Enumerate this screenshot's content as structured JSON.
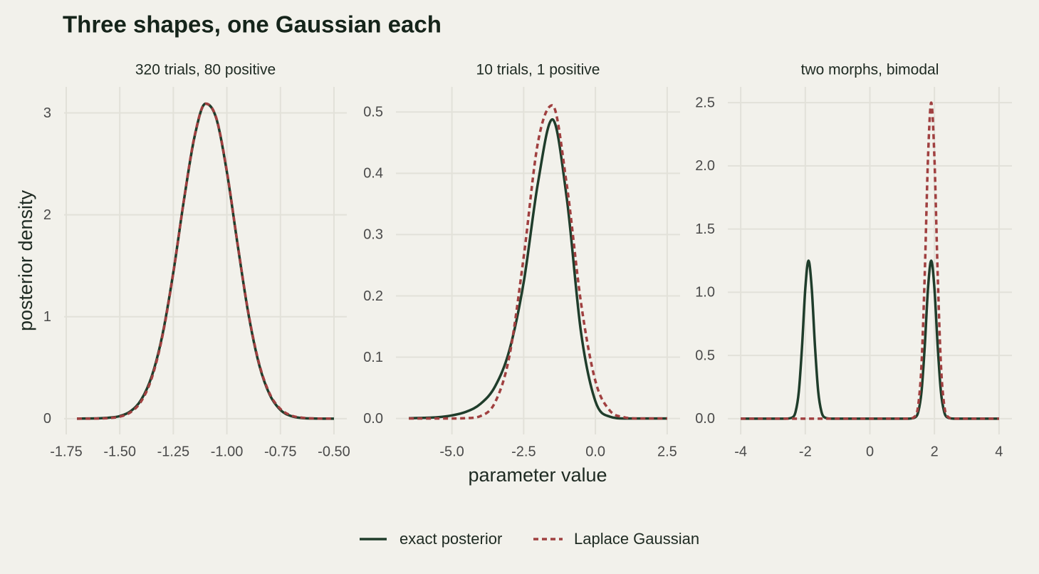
{
  "title": "Three shapes, one Gaussian each",
  "x_label": "parameter value",
  "y_label": "posterior density",
  "chart_data": [
    {
      "type": "line",
      "title": "320 trials, 80 positive",
      "x": [
        -1.7,
        -1.65,
        -1.6,
        -1.55,
        -1.5,
        -1.45,
        -1.4,
        -1.35,
        -1.3,
        -1.25,
        -1.2,
        -1.15,
        -1.1,
        -1.05,
        -1.0,
        -0.95,
        -0.9,
        -0.85,
        -0.8,
        -0.75,
        -0.7,
        -0.65,
        -0.6,
        -0.55,
        -0.5
      ],
      "series": [
        {
          "name": "exact posterior",
          "color": "#1f3d2b",
          "dash": false,
          "values": [
            0,
            0.001,
            0.003,
            0.009,
            0.025,
            0.072,
            0.185,
            0.42,
            0.83,
            1.435,
            2.15,
            2.775,
            3.09,
            2.95,
            2.42,
            1.71,
            1.035,
            0.535,
            0.235,
            0.085,
            0.025,
            0.006,
            0.001,
            0,
            0
          ]
        },
        {
          "name": "Laplace Gaussian",
          "color": "#a04040",
          "dash": true,
          "values": [
            0,
            0,
            0.001,
            0.005,
            0.019,
            0.062,
            0.17,
            0.403,
            0.819,
            1.431,
            2.152,
            2.781,
            3.091,
            2.954,
            2.428,
            1.716,
            1.043,
            0.545,
            0.245,
            0.095,
            0.031,
            0.009,
            0.002,
            0.0005,
            0
          ]
        }
      ],
      "xlim": [
        -1.76,
        -0.44
      ],
      "xticks": [
        -1.75,
        {
          "value": -1.5,
          "label": "-1.50"
        },
        -1.25,
        {
          "value": -1.0,
          "label": "-1.00"
        },
        -0.75,
        {
          "value": -0.5,
          "label": "-0.50"
        }
      ],
      "ylim": [
        -0.155,
        3.255
      ],
      "yticks": [
        0,
        1,
        2,
        3
      ],
      "grid": true
    },
    {
      "type": "line",
      "title": "10 trials, 1 positive",
      "x": [
        -6.5,
        -6.0,
        -5.5,
        -5.0,
        -4.5,
        -4.0,
        -3.5,
        -3.0,
        -2.5,
        -2.0,
        -1.5,
        -1.0,
        -0.5,
        0.0,
        0.5,
        1.0,
        1.5,
        2.0,
        2.5
      ],
      "series": [
        {
          "name": "exact posterior",
          "color": "#1f3d2b",
          "dash": false,
          "values": [
            0.0005,
            0.001,
            0.002,
            0.005,
            0.011,
            0.024,
            0.052,
            0.111,
            0.222,
            0.385,
            0.488,
            0.36,
            0.14,
            0.028,
            0.003,
            0,
            0,
            0,
            0
          ]
        },
        {
          "name": "Laplace Gaussian",
          "color": "#a04040",
          "dash": true,
          "values": [
            0,
            0,
            0,
            0,
            0.0005,
            0.004,
            0.026,
            0.101,
            0.263,
            0.451,
            0.511,
            0.382,
            0.188,
            0.061,
            0.013,
            0.002,
            0,
            0,
            0
          ]
        }
      ],
      "xlim": [
        -6.95,
        2.95
      ],
      "xticks": [
        {
          "value": -5.0,
          "label": "-5.0"
        },
        -2.5,
        {
          "value": 0.0,
          "label": "0.0"
        },
        2.5
      ],
      "ylim": [
        -0.026,
        0.541
      ],
      "yticks": [
        {
          "value": 0.0,
          "label": "0.0"
        },
        0.1,
        0.2,
        0.3,
        0.4,
        0.5
      ],
      "grid": true
    },
    {
      "type": "line",
      "title": "two morphs, bimodal",
      "x": [
        -4,
        -3,
        -2.6,
        -2.4,
        -2.3,
        -2.2,
        -2.1,
        -2.0,
        -1.9,
        -1.8,
        -1.7,
        -1.6,
        -1.5,
        -1.4,
        -1.2,
        0,
        1.2,
        1.4,
        1.5,
        1.6,
        1.7,
        1.8,
        1.9,
        2.0,
        2.1,
        2.2,
        2.3,
        2.4,
        2.6,
        3,
        4
      ],
      "series": [
        {
          "name": "exact posterior",
          "color": "#1f3d2b",
          "dash": false,
          "values": [
            0,
            0,
            0,
            0.0095,
            0.055,
            0.215,
            0.573,
            1.029,
            1.25,
            1.029,
            0.573,
            0.215,
            0.055,
            0.0095,
            0,
            0,
            0,
            0.0095,
            0.055,
            0.215,
            0.573,
            1.029,
            1.25,
            1.029,
            0.573,
            0.215,
            0.055,
            0.0095,
            0,
            0,
            0
          ]
        },
        {
          "name": "Laplace Gaussian",
          "color": "#a04040",
          "dash": true,
          "values": [
            0,
            0,
            0,
            0,
            0,
            0,
            0,
            0,
            0,
            0,
            0,
            0,
            0,
            0,
            0,
            0,
            0,
            0.019,
            0.11,
            0.43,
            1.145,
            2.058,
            2.5,
            2.058,
            1.145,
            0.43,
            0.11,
            0.019,
            0,
            0,
            0
          ]
        }
      ],
      "xlim": [
        -4.4,
        4.4
      ],
      "xticks": [
        -4,
        -2,
        0,
        2,
        4
      ],
      "ylim": [
        -0.125,
        2.625
      ],
      "yticks": [
        {
          "value": 0.0,
          "label": "0.0"
        },
        0.5,
        {
          "value": 1.0,
          "label": "1.0"
        },
        1.5,
        {
          "value": 2.0,
          "label": "2.0"
        },
        2.5
      ],
      "grid": true
    }
  ]
}
